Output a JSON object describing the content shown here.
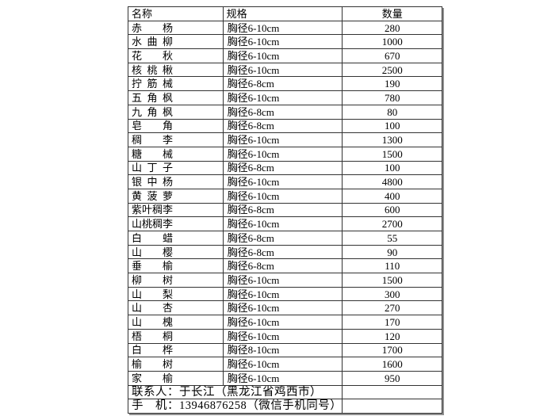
{
  "table": {
    "columns": [
      "名称",
      "规格",
      "数量"
    ],
    "rows": [
      {
        "name": "赤杨",
        "spec": "胸径6-10cm",
        "qty": "280"
      },
      {
        "name": "水曲柳",
        "spec": "胸径6-10cm",
        "qty": "1000"
      },
      {
        "name": "花秋",
        "spec": "胸径6-10cm",
        "qty": "670"
      },
      {
        "name": "核桃楸",
        "spec": "胸径6-10cm",
        "qty": "2500"
      },
      {
        "name": "拧筋械",
        "spec": "胸径6-8cm",
        "qty": "190"
      },
      {
        "name": "五角枫",
        "spec": "胸径6-10cm",
        "qty": "780"
      },
      {
        "name": "九角枫",
        "spec": "胸径6-8cm",
        "qty": "80"
      },
      {
        "name": "皂角",
        "spec": "胸径6-8cm",
        "qty": "100"
      },
      {
        "name": "稠李",
        "spec": "胸径6-10cm",
        "qty": "1300"
      },
      {
        "name": "糖械",
        "spec": "胸径6-10cm",
        "qty": "1500"
      },
      {
        "name": "山丁子",
        "spec": "胸径6-8cm",
        "qty": "100"
      },
      {
        "name": "银中杨",
        "spec": "胸径6-10cm",
        "qty": "4800"
      },
      {
        "name": "黄菠萝",
        "spec": "胸径6-10cm",
        "qty": "400"
      },
      {
        "name": "紫叶稠李",
        "spec": "胸径6-8cm",
        "qty": "600"
      },
      {
        "name": "山桃稠李",
        "spec": "胸径6-10cm",
        "qty": "2700"
      },
      {
        "name": "白蜡",
        "spec": "胸径6-8cm",
        "qty": "55"
      },
      {
        "name": "山樱",
        "spec": "胸径6-8cm",
        "qty": "90"
      },
      {
        "name": "垂榆",
        "spec": "胸径6-8cm",
        "qty": "110"
      },
      {
        "name": "柳树",
        "spec": "胸径6-10cm",
        "qty": "1500"
      },
      {
        "name": "山梨",
        "spec": "胸径6-10cm",
        "qty": "300"
      },
      {
        "name": "山杏",
        "spec": "胸径6-10cm",
        "qty": "270"
      },
      {
        "name": "山槐",
        "spec": "胸径6-10cm",
        "qty": "170"
      },
      {
        "name": "梧桐",
        "spec": "胸径6-10cm",
        "qty": "120"
      },
      {
        "name": "白桦",
        "spec": "胸径8-10cm",
        "qty": "1700"
      },
      {
        "name": "榆树",
        "spec": "胸径6-10cm",
        "qty": "1600"
      },
      {
        "name": "家榆",
        "spec": "胸径6-10cm",
        "qty": "950"
      }
    ],
    "contact_row": "联系人：于长江（黑龙江省鸡西市）",
    "phone_row": "手　机：13946876258（微信手机同号）"
  },
  "colors": {
    "background": "#ffffff",
    "text": "#000000",
    "grid_line": "#333333",
    "outer_shadow": "#8f8f8f"
  }
}
